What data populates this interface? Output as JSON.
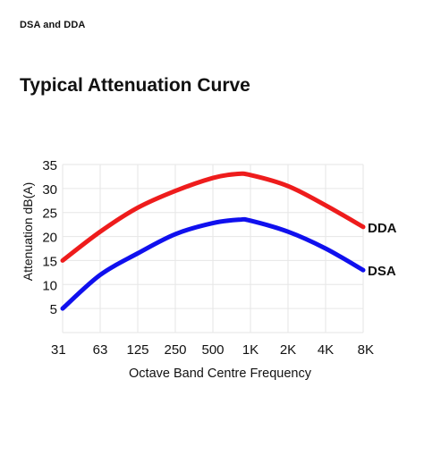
{
  "header": {
    "eyebrow": "DSA and DDA",
    "title": "Typical Attenuation Curve"
  },
  "chart_data": {
    "type": "line",
    "xlabel": "Octave Band Centre Frequency",
    "ylabel": "Attenuation dB(A)",
    "categories": [
      "31",
      "63",
      "125",
      "250",
      "500",
      "1K",
      "2K",
      "4K",
      "8K"
    ],
    "x": [
      0,
      1,
      2,
      3,
      4,
      5,
      6,
      7,
      8
    ],
    "ylim": [
      0,
      35
    ],
    "yticks": [
      5,
      10,
      15,
      20,
      25,
      30,
      35
    ],
    "grid": true,
    "series": [
      {
        "name": "DDA",
        "color": "#ee1c1c",
        "x": [
          0,
          1,
          2,
          3,
          4,
          4.6,
          5,
          6,
          7,
          8
        ],
        "values": [
          15,
          21,
          26,
          29.5,
          32.2,
          33,
          32.8,
          30.5,
          26.5,
          22
        ]
      },
      {
        "name": "DSA",
        "color": "#1010ee",
        "x": [
          0,
          1,
          2,
          3,
          4,
          4.7,
          5,
          6,
          7,
          8
        ],
        "values": [
          5,
          12,
          16.5,
          20.5,
          22.8,
          23.5,
          23.3,
          21,
          17.5,
          13
        ]
      }
    ]
  }
}
